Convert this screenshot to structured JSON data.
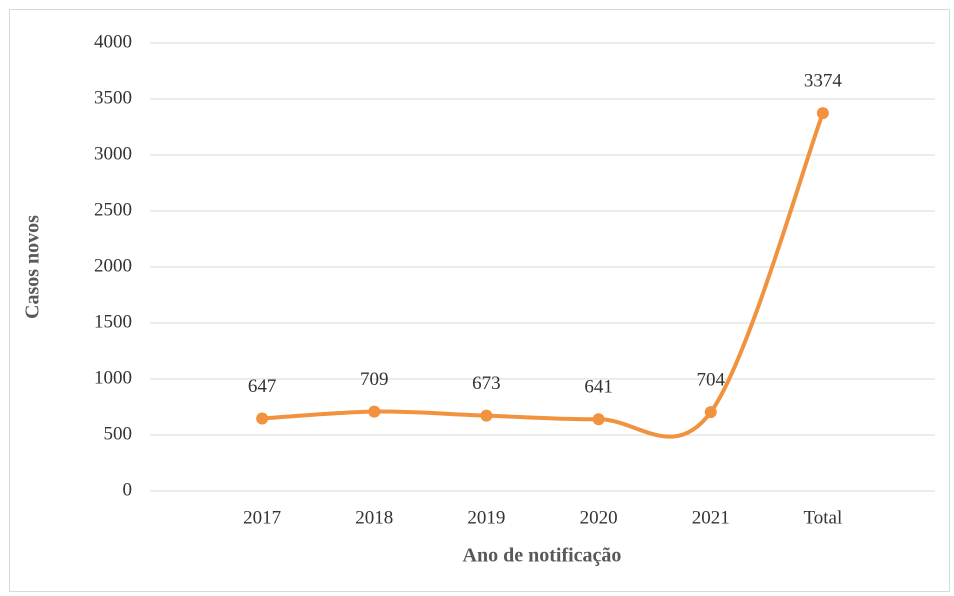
{
  "chart_data": {
    "type": "line",
    "x_label": "Ano de notificação",
    "y_label": "Casos novos",
    "categories": [
      "2017",
      "2018",
      "2019",
      "2020",
      "2021",
      "Total"
    ],
    "values": [
      647,
      709,
      673,
      641,
      704,
      3374
    ],
    "color": "#f0923e",
    "smooth": true,
    "ylim": [
      0,
      4000
    ],
    "yticks": [
      0,
      500,
      1000,
      1500,
      2000,
      2500,
      3000,
      3500,
      4000
    ],
    "grid": true
  }
}
